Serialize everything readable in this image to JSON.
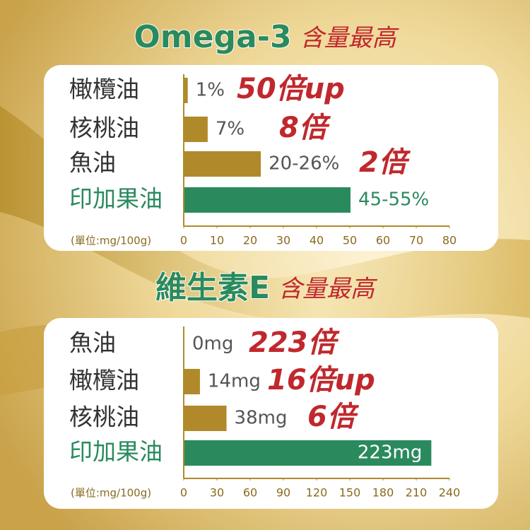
{
  "chart_data": [
    {
      "type": "hbar",
      "title": "Omega-3",
      "subtitle": "含量最高",
      "categories": [
        "橄欖油",
        "核桃油",
        "魚油",
        "印加果油"
      ],
      "values": [
        1,
        7,
        23,
        50
      ],
      "value_labels": [
        "1%",
        "7%",
        "20-26%",
        "45-55%"
      ],
      "colors": [
        "#b08a2a",
        "#b08a2a",
        "#b08a2a",
        "#2a8a5e"
      ],
      "annotations": [
        "50倍up",
        "8倍",
        "2倍"
      ],
      "xlabel": "(單位:mg/100g)",
      "xlim": [
        0,
        80
      ],
      "xticks": [
        0,
        10,
        20,
        30,
        40,
        50,
        60,
        70,
        80
      ]
    },
    {
      "type": "hbar",
      "title": "維生素E",
      "subtitle": "含量最高",
      "categories": [
        "魚油",
        "橄欖油",
        "核桃油",
        "印加果油"
      ],
      "values": [
        0,
        14,
        38,
        223
      ],
      "value_labels": [
        "0mg",
        "14mg",
        "38mg",
        "223mg"
      ],
      "colors": [
        "#b08a2a",
        "#b08a2a",
        "#b08a2a",
        "#2a8a5e"
      ],
      "annotations": [
        "223倍",
        "16倍up",
        "6倍"
      ],
      "xlabel": "(單位:mg/100g)",
      "xlim": [
        0,
        240
      ],
      "xticks": [
        0,
        30,
        60,
        90,
        120,
        150,
        180,
        210,
        240
      ]
    }
  ]
}
